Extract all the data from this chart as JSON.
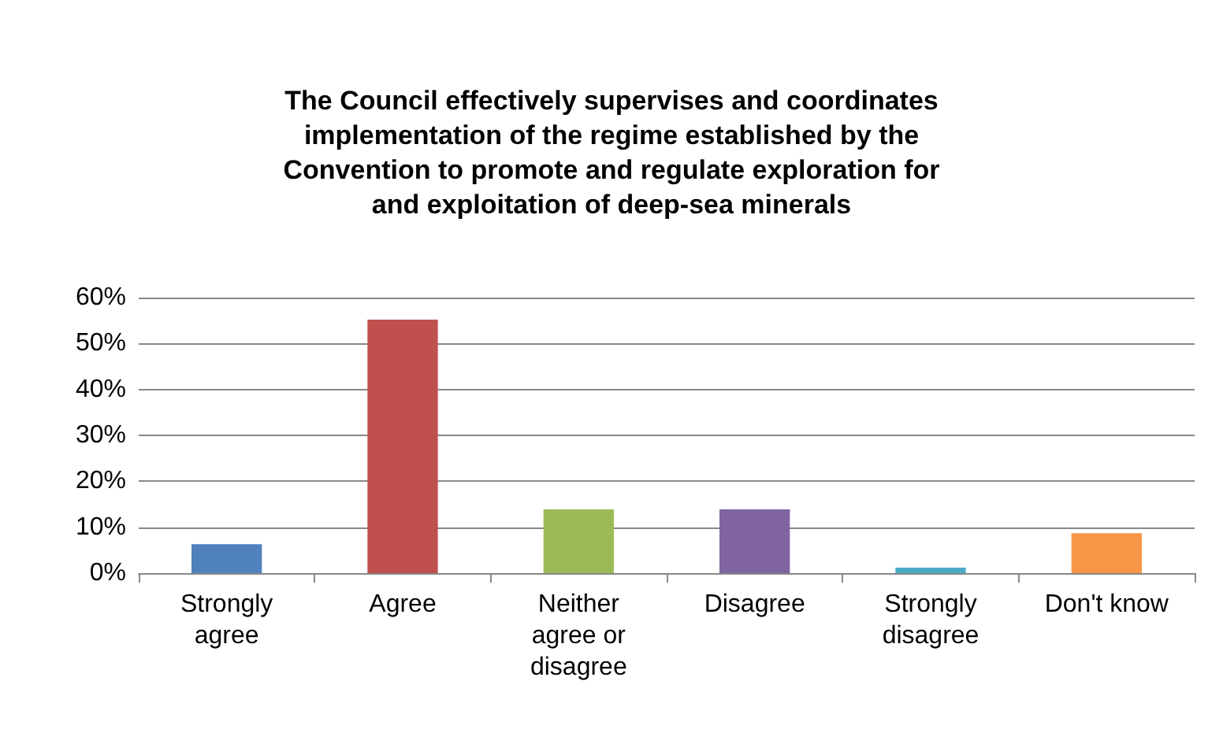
{
  "chart_data": {
    "type": "bar",
    "title": "The Council effectively supervises and coordinates\nimplementation of the regime established by the\nConvention to promote and regulate exploration for\nand exploitation of deep-sea minerals",
    "categories": [
      "Strongly\nagree",
      "Agree",
      "Neither\nagree or\ndisagree",
      "Disagree",
      "Strongly\ndisagree",
      "Don't know"
    ],
    "values": [
      6.3,
      55.2,
      13.9,
      13.9,
      1.2,
      8.7
    ],
    "colors": [
      "#4f81bd",
      "#c0504d",
      "#9bbb59",
      "#8064a2",
      "#4bacc6",
      "#f79646"
    ],
    "ylim": [
      0,
      60
    ],
    "yticks": [
      {
        "value": 0,
        "label": "0%"
      },
      {
        "value": 10,
        "label": "10%"
      },
      {
        "value": 20,
        "label": "20%"
      },
      {
        "value": 30,
        "label": "30%"
      },
      {
        "value": 40,
        "label": "40%"
      },
      {
        "value": 50,
        "label": "50%"
      },
      {
        "value": 60,
        "label": "60%"
      }
    ],
    "grid": "y"
  }
}
